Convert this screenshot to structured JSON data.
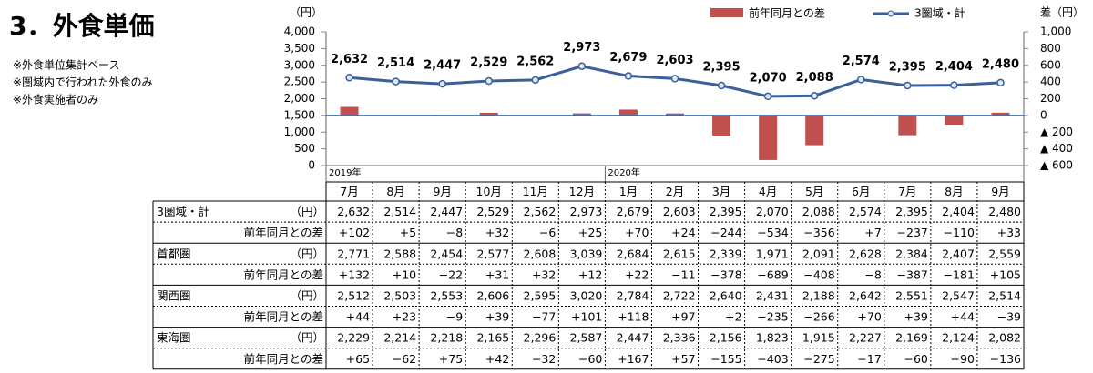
{
  "chart_data": {
    "type": "combo",
    "title": "3．外食単価",
    "notes": [
      "※外食単位集計ベース",
      "※圏域内で行われた外食のみ",
      "※外食実施者のみ"
    ],
    "y_unit": "（円）",
    "y2_unit": "差（円）",
    "categories": [
      "7月",
      "8月",
      "9月",
      "10月",
      "11月",
      "12月",
      "1月",
      "2月",
      "3月",
      "4月",
      "5月",
      "6月",
      "7月",
      "8月",
      "9月"
    ],
    "year_labels": [
      "2019年",
      null,
      null,
      null,
      null,
      null,
      "2020年",
      null,
      null,
      null,
      null,
      null,
      null,
      null,
      null
    ],
    "ylim": [
      0,
      4000
    ],
    "yticks": [
      {
        "value": 4000,
        "label": "4,000"
      },
      {
        "value": 3500,
        "label": "3,500"
      },
      {
        "value": 3000,
        "label": "3,000"
      },
      {
        "value": 2500,
        "label": "2,500"
      },
      {
        "value": 2000,
        "label": "2,000"
      },
      {
        "value": 1500,
        "label": "1,500"
      },
      {
        "value": 1000,
        "label": "1,000"
      },
      500,
      0
    ],
    "y2lim": [
      -600,
      1000
    ],
    "y2ticks": [
      {
        "value": 1000,
        "label": "1,000"
      },
      800,
      600,
      400,
      200,
      0,
      {
        "value": -200,
        "label": "▲ 200"
      },
      {
        "value": -400,
        "label": "▲ 400"
      },
      {
        "value": -600,
        "label": "▲ 600"
      }
    ],
    "legend": "top-right",
    "series": [
      {
        "name": "前年同月との差",
        "type": "bar",
        "axis": "y2",
        "color": "#c0504d",
        "values": [
          102,
          5,
          -8,
          32,
          -6,
          25,
          70,
          24,
          -244,
          -534,
          -356,
          7,
          -237,
          -110,
          33
        ]
      },
      {
        "name": "3圏域・計",
        "type": "line",
        "color": "#3a5f9a",
        "values": [
          2632,
          2514,
          2447,
          2529,
          2562,
          2973,
          2679,
          2603,
          2395,
          2070,
          2088,
          2574,
          2395,
          2404,
          2480
        ],
        "value_labels": [
          "2,632",
          "2,514",
          "2,447",
          "2,529",
          "2,562",
          "2,973",
          "2,679",
          "2,603",
          "2,395",
          "2,070",
          "2,088",
          "2,574",
          "2,395",
          "2,404",
          "2,480"
        ]
      }
    ]
  },
  "table": {
    "rows": [
      {
        "label": "3圏域・計",
        "unit": "（円）",
        "cells": [
          "2,632",
          "2,514",
          "2,447",
          "2,529",
          "2,562",
          "2,973",
          "2,679",
          "2,603",
          "2,395",
          "2,070",
          "2,088",
          "2,574",
          "2,395",
          "2,404",
          "2,480"
        ]
      },
      {
        "label": "前年同月との差",
        "cells": [
          "+102",
          "+5",
          "−8",
          "+32",
          "−6",
          "+25",
          "+70",
          "+24",
          "−244",
          "−534",
          "−356",
          "+7",
          "−237",
          "−110",
          "+33"
        ]
      },
      {
        "label": "首都圏",
        "unit": "（円）",
        "cells": [
          "2,771",
          "2,588",
          "2,454",
          "2,577",
          "2,608",
          "3,039",
          "2,684",
          "2,615",
          "2,339",
          "1,971",
          "2,091",
          "2,628",
          "2,384",
          "2,407",
          "2,559"
        ]
      },
      {
        "label": "前年同月との差",
        "cells": [
          "+132",
          "+10",
          "−22",
          "+31",
          "+32",
          "+12",
          "+22",
          "−11",
          "−378",
          "−689",
          "−408",
          "−8",
          "−387",
          "−181",
          "+105"
        ]
      },
      {
        "label": "関西圏",
        "unit": "（円）",
        "cells": [
          "2,512",
          "2,503",
          "2,553",
          "2,606",
          "2,595",
          "3,020",
          "2,784",
          "2,722",
          "2,640",
          "2,431",
          "2,188",
          "2,642",
          "2,551",
          "2,547",
          "2,514"
        ]
      },
      {
        "label": "前年同月との差",
        "cells": [
          "+44",
          "+23",
          "−9",
          "+39",
          "−77",
          "+101",
          "+118",
          "+97",
          "+2",
          "−235",
          "−266",
          "+70",
          "+39",
          "+44",
          "−39"
        ]
      },
      {
        "label": "東海圏",
        "unit": "（円）",
        "cells": [
          "2,229",
          "2,214",
          "2,218",
          "2,165",
          "2,296",
          "2,587",
          "2,447",
          "2,336",
          "2,156",
          "1,823",
          "1,915",
          "2,227",
          "2,169",
          "2,124",
          "2,082"
        ]
      },
      {
        "label": "前年同月との差",
        "cells": [
          "+65",
          "−62",
          "+75",
          "+42",
          "−32",
          "−60",
          "+167",
          "+57",
          "−155",
          "−403",
          "−275",
          "−17",
          "−60",
          "−90",
          "−136"
        ]
      }
    ]
  }
}
